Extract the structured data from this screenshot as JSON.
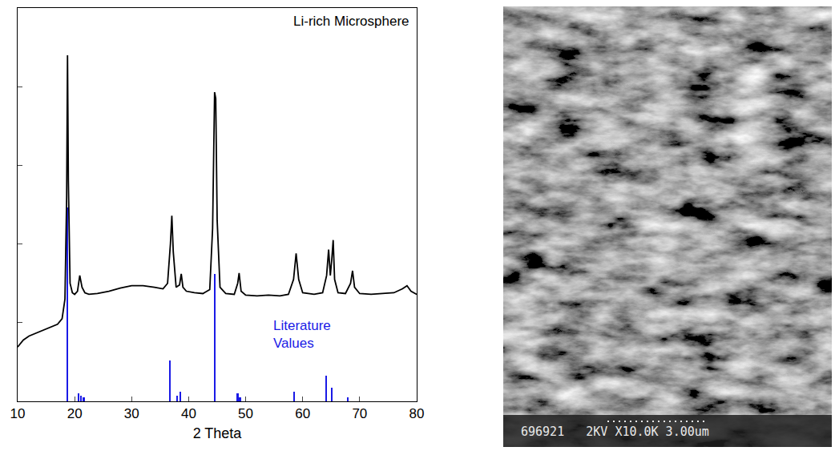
{
  "chart_data": {
    "type": "line",
    "title": "Li-rich Microsphere",
    "x_label": "2 Theta",
    "xlim": [
      10,
      80
    ],
    "xticks": [
      10,
      20,
      30,
      40,
      50,
      60,
      70,
      80
    ],
    "ylim": [
      0,
      5
    ],
    "yticks": [
      0,
      1,
      2,
      3,
      4,
      5
    ],
    "tick_labels": "x",
    "grid": false,
    "annotations": [
      {
        "text": "Literature Values",
        "x": 54.5,
        "y": 0.85,
        "color": "#1a1ae6"
      }
    ],
    "series": [
      {
        "type": "line",
        "color": "#000000",
        "x": [
          10,
          11,
          12,
          13,
          14,
          15,
          16,
          17,
          17.8,
          18.3,
          18.6,
          18.75,
          18.9,
          19.2,
          19.6,
          20,
          20.5,
          20.9,
          21.3,
          21.8,
          22.5,
          24,
          26,
          28,
          30,
          32,
          34,
          35.5,
          36.3,
          36.8,
          37.05,
          37.3,
          37.8,
          38.4,
          38.7,
          39.0,
          39.6,
          41,
          42.5,
          43.7,
          44.2,
          44.55,
          44.75,
          45.0,
          45.5,
          46.5,
          48,
          48.6,
          48.85,
          49.2,
          50,
          52,
          54,
          56,
          57.5,
          58.4,
          58.85,
          59.3,
          60,
          62,
          63.5,
          64.2,
          64.55,
          64.85,
          65.1,
          65.35,
          65.6,
          66.2,
          67.5,
          68.4,
          68.75,
          69.1,
          70,
          72,
          74,
          76,
          77.5,
          78.3,
          79,
          80
        ],
        "values": [
          0.69,
          0.78,
          0.83,
          0.86,
          0.89,
          0.92,
          0.95,
          0.98,
          1.05,
          1.3,
          2.6,
          4.4,
          2.8,
          1.5,
          1.38,
          1.36,
          1.4,
          1.6,
          1.45,
          1.38,
          1.36,
          1.37,
          1.4,
          1.44,
          1.47,
          1.47,
          1.45,
          1.43,
          1.5,
          2.0,
          2.36,
          1.9,
          1.45,
          1.48,
          1.62,
          1.45,
          1.4,
          1.38,
          1.37,
          1.42,
          2.2,
          3.93,
          3.85,
          2.3,
          1.45,
          1.37,
          1.36,
          1.5,
          1.63,
          1.4,
          1.35,
          1.34,
          1.35,
          1.34,
          1.36,
          1.55,
          1.88,
          1.55,
          1.38,
          1.36,
          1.38,
          1.6,
          1.93,
          1.6,
          1.8,
          2.05,
          1.55,
          1.38,
          1.37,
          1.5,
          1.66,
          1.45,
          1.37,
          1.36,
          1.37,
          1.38,
          1.43,
          1.47,
          1.4,
          1.36
        ]
      },
      {
        "type": "bar",
        "color": "#1a1ae6",
        "x": [
          18.7,
          20.7,
          21.1,
          21.6,
          36.7,
          38.0,
          38.5,
          44.6,
          48.6,
          49.0,
          58.5,
          64.1,
          65.1,
          67.9
        ],
        "values": [
          2.46,
          0.1,
          0.07,
          0.05,
          0.52,
          0.07,
          0.12,
          1.62,
          0.1,
          0.05,
          0.12,
          0.33,
          0.17,
          0.05
        ]
      }
    ]
  },
  "sem_image": {
    "caption_parts": [
      "696921",
      "2KV",
      "X10.0K",
      "3.00um"
    ]
  }
}
